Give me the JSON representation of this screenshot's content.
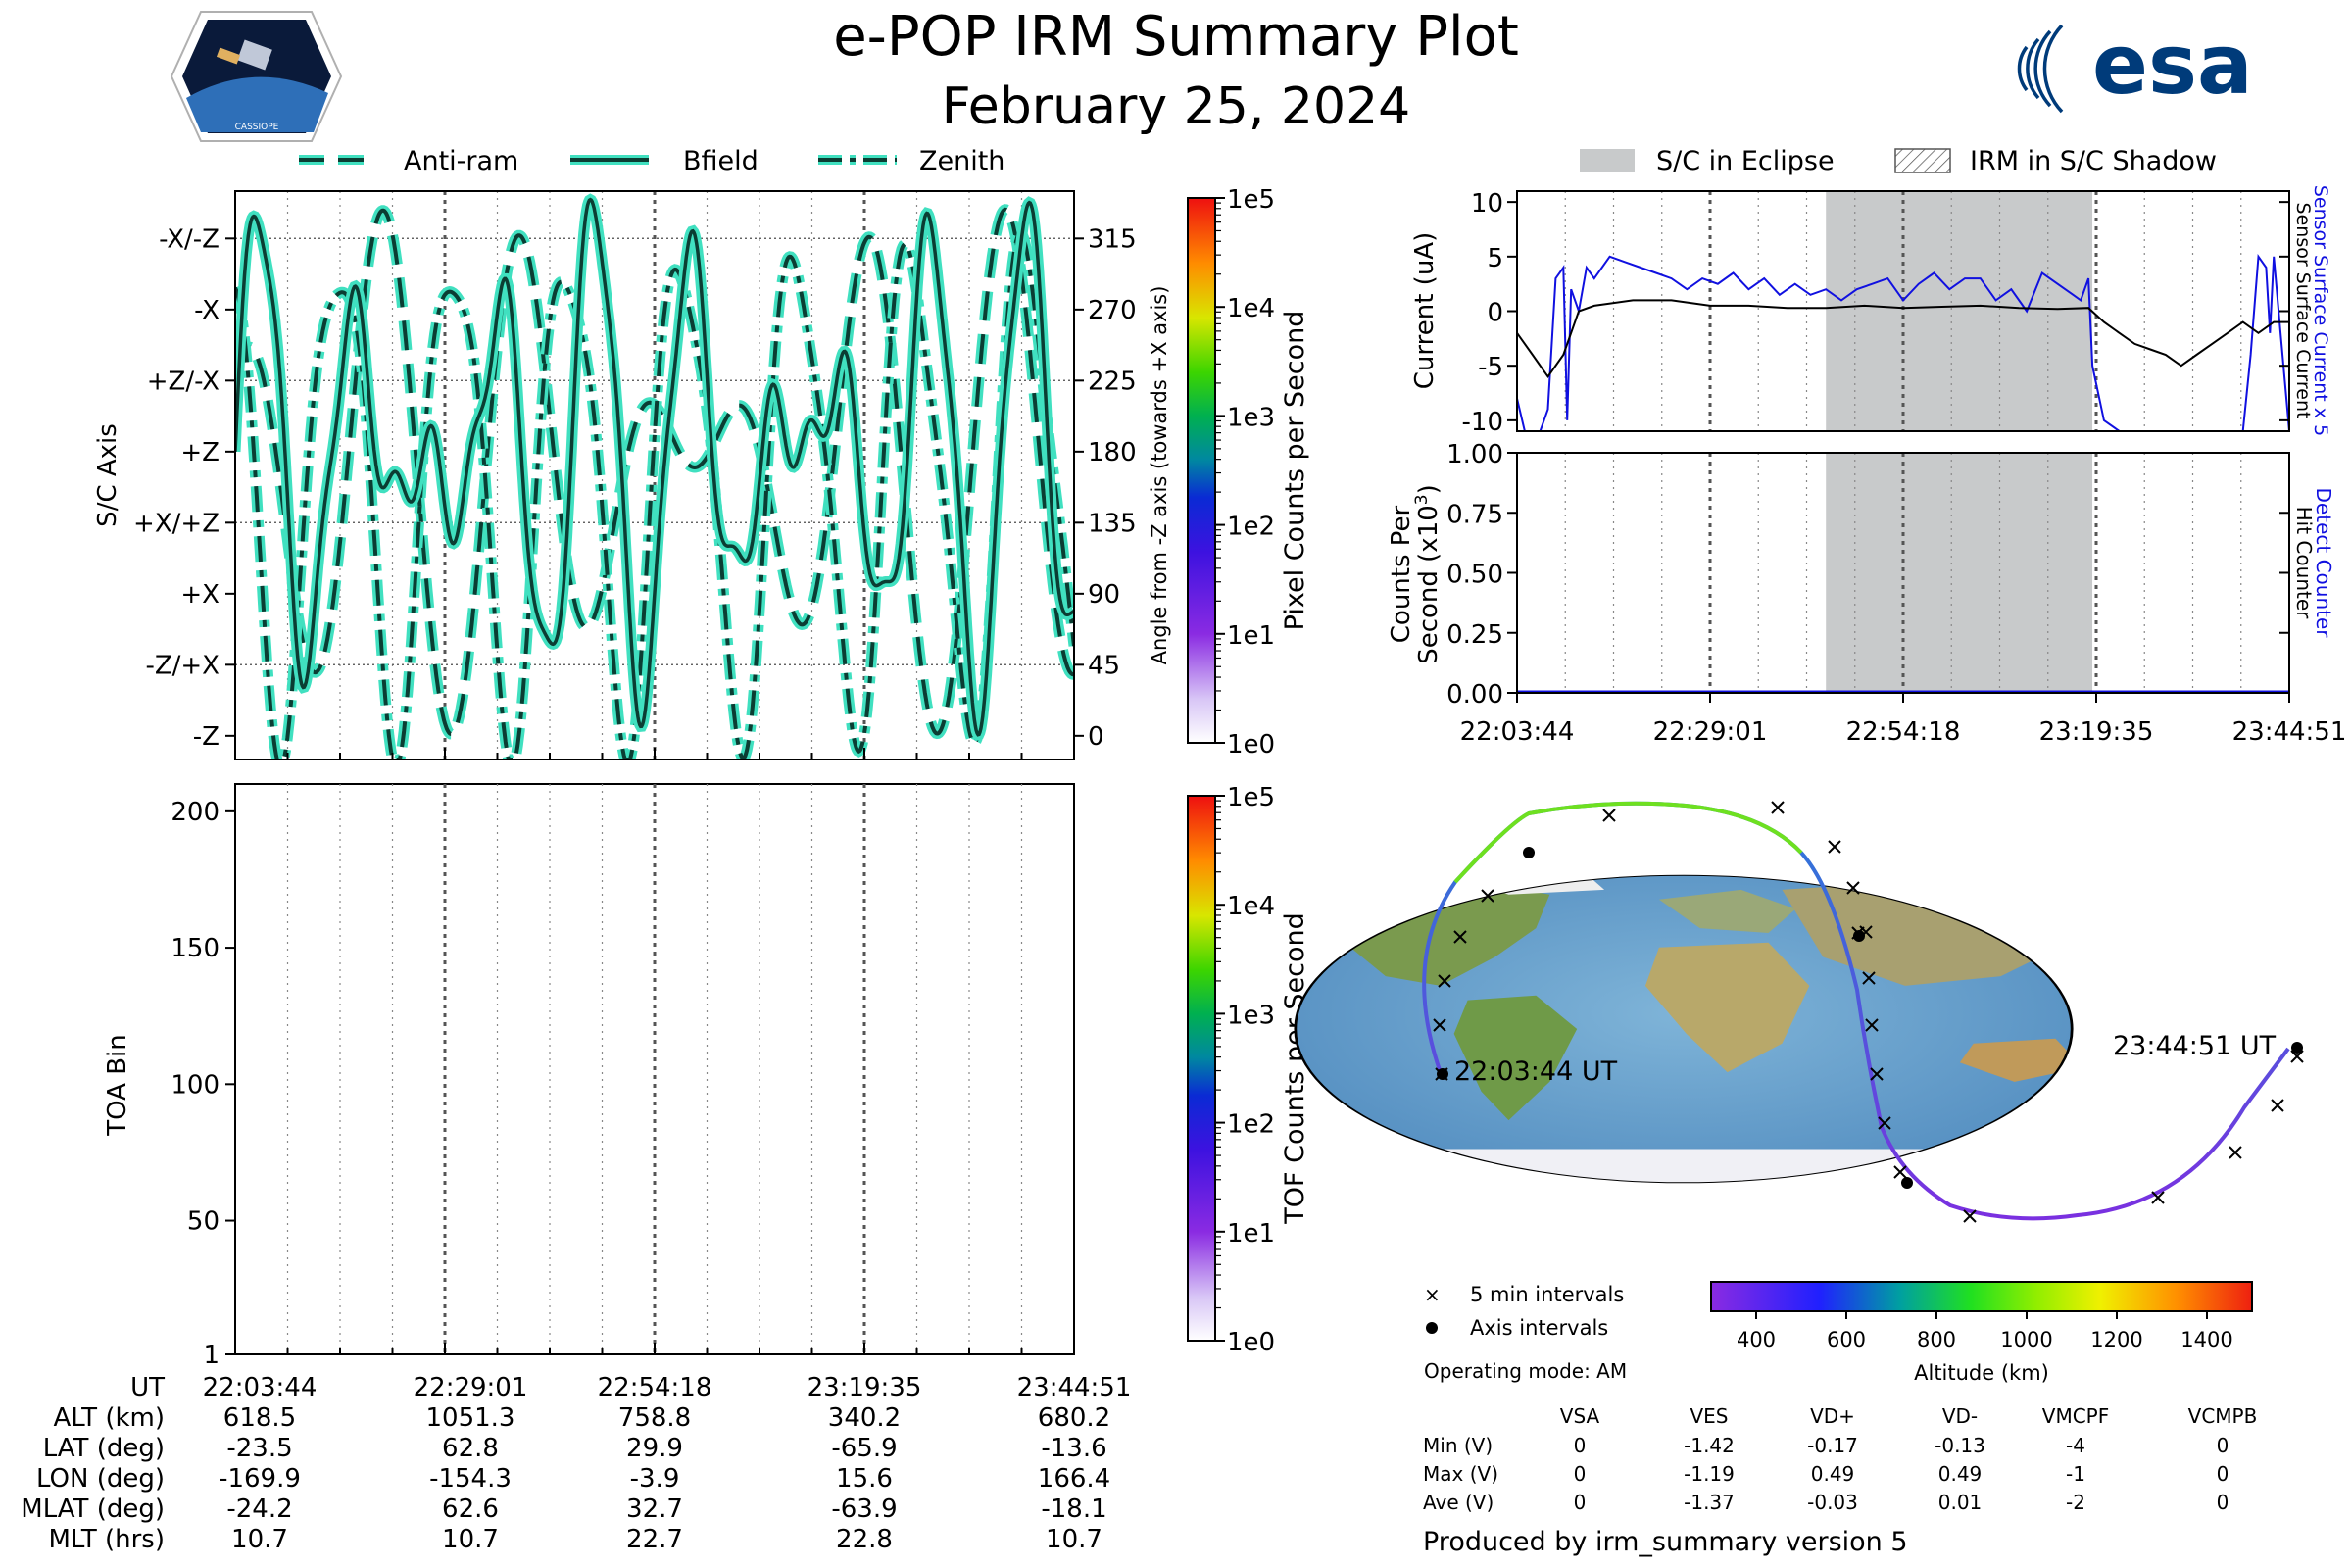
{
  "header": {
    "title": "e-POP IRM Summary Plot",
    "date": "February 25, 2024",
    "mission_logo_text": "CASSIOPE",
    "agency_logo_text": "esa"
  },
  "colors": {
    "trace_fill": "#40e0c0",
    "trace_edge": "#0b3d33",
    "eclipse": "#c8cacb",
    "blue_series": "#1010e0",
    "black_series": "#000000"
  },
  "chart_data": [
    {
      "id": "sc-axis-panel",
      "type": "line",
      "ylabel": "S/C Axis",
      "ylabel_right": "Angle from -Z axis (towards +X axis)",
      "ylim": [
        -15,
        345
      ],
      "y_ticks_left": [
        {
          "value": 0,
          "label": "-Z"
        },
        {
          "value": 45,
          "label": "-Z/+X"
        },
        {
          "value": 90,
          "label": "+X"
        },
        {
          "value": 135,
          "label": "+X/+Z"
        },
        {
          "value": 180,
          "label": "+Z"
        },
        {
          "value": 225,
          "label": "+Z/-X"
        },
        {
          "value": 270,
          "label": "-X"
        },
        {
          "value": 315,
          "label": "-X/-Z"
        }
      ],
      "y_ticks_right": [
        "0",
        "45",
        "90",
        "135",
        "180",
        "225",
        "270",
        "315"
      ],
      "legend": [
        "Anti-ram",
        "Bfield",
        "Zenith"
      ],
      "colorbar": {
        "label": "Pixel Counts per Second",
        "ticks": [
          "1e0",
          "1e1",
          "1e2",
          "1e3",
          "1e4",
          "1e5"
        ]
      }
    },
    {
      "id": "toa-panel",
      "type": "heatmap",
      "ylabel": "TOA Bin",
      "y_ticks": [
        "1",
        "50",
        "100",
        "150",
        "200"
      ],
      "ylim": [
        1,
        210
      ],
      "colorbar": {
        "label": "TOF Counts per Second",
        "ticks": [
          "1e0",
          "1e1",
          "1e2",
          "1e3",
          "1e4",
          "1e5"
        ]
      }
    },
    {
      "id": "current-panel",
      "type": "line",
      "ylabel": "Current (uA)",
      "ylim": [
        -11,
        11
      ],
      "y_ticks": [
        "10",
        "5",
        "0",
        "-5",
        "-10"
      ],
      "legend": [
        "S/C in Eclipse",
        "IRM in S/C Shadow"
      ],
      "right_labels": [
        "Sensor Surface Current x 5",
        "Sensor Surface Current"
      ],
      "eclipse_fraction": [
        0.4,
        0.745
      ],
      "series": [
        {
          "name": "Sensor Surface Current x 5",
          "color": "#1010e0",
          "x": [
            0,
            0.01,
            0.02,
            0.03,
            0.04,
            0.05,
            0.06,
            0.065,
            0.07,
            0.08,
            0.09,
            0.1,
            0.12,
            0.14,
            0.16,
            0.18,
            0.2,
            0.22,
            0.24,
            0.26,
            0.28,
            0.3,
            0.32,
            0.34,
            0.36,
            0.38,
            0.4,
            0.42,
            0.44,
            0.46,
            0.48,
            0.5,
            0.52,
            0.54,
            0.56,
            0.58,
            0.6,
            0.62,
            0.64,
            0.66,
            0.68,
            0.7,
            0.72,
            0.73,
            0.74,
            0.745,
            0.76,
            0.78,
            0.8,
            0.82,
            0.84,
            0.86,
            0.88,
            0.9,
            0.92,
            0.94,
            0.95,
            0.96,
            0.97,
            0.975,
            0.98,
            1
          ],
          "y": [
            -8,
            -11,
            -11,
            -11,
            -9,
            3,
            4,
            -10,
            2,
            0,
            4,
            3,
            5,
            4.5,
            4,
            3.5,
            3,
            2,
            3,
            2.5,
            3.5,
            2,
            3,
            1.5,
            2.5,
            1.5,
            2,
            1,
            2,
            2.5,
            3,
            1,
            2.5,
            3.5,
            2,
            3,
            3,
            1,
            2,
            0,
            3.5,
            2.5,
            1.5,
            1,
            3,
            -5,
            -10,
            -11,
            -11,
            -11,
            -11,
            -11,
            -11,
            -11,
            -11,
            -11,
            -4,
            5,
            4,
            -2,
            5,
            -11
          ]
        },
        {
          "name": "Sensor Surface Current",
          "color": "#000000",
          "x": [
            0,
            0.02,
            0.04,
            0.06,
            0.08,
            0.1,
            0.15,
            0.2,
            0.25,
            0.3,
            0.35,
            0.4,
            0.45,
            0.5,
            0.55,
            0.6,
            0.65,
            0.7,
            0.74,
            0.76,
            0.78,
            0.8,
            0.82,
            0.84,
            0.86,
            0.88,
            0.9,
            0.92,
            0.94,
            0.96,
            0.98,
            1
          ],
          "y": [
            -2,
            -4,
            -6,
            -4,
            0,
            0.5,
            1,
            1,
            0.5,
            0.5,
            0.3,
            0.3,
            0.5,
            0.3,
            0.4,
            0.5,
            0.3,
            0.2,
            0.3,
            -1,
            -2,
            -3,
            -3.5,
            -4,
            -5,
            -4,
            -3,
            -2,
            -1,
            -2,
            -1,
            -1
          ]
        }
      ]
    },
    {
      "id": "counts-panel",
      "type": "line",
      "ylabel": "Counts Per",
      "ylabel2": "Second (x10",
      "ylabel_exp": "3",
      "ylabel_tail": ")",
      "ylim": [
        0,
        1
      ],
      "y_ticks": [
        "1.00",
        "0.75",
        "0.50",
        "0.25",
        "0.00"
      ],
      "right_labels": [
        "Detect Counter",
        "Hit Counter"
      ],
      "eclipse_fraction": [
        0.4,
        0.745
      ],
      "series": [
        {
          "name": "Detect Counter",
          "color": "#1010e0",
          "x": [
            0,
            1
          ],
          "y": [
            0,
            0
          ]
        },
        {
          "name": "Hit Counter",
          "color": "#000000",
          "x": [
            0,
            1
          ],
          "y": [
            0,
            0
          ]
        }
      ]
    }
  ],
  "time_ticks": [
    "22:03:44",
    "22:29:01",
    "22:54:18",
    "23:19:35",
    "23:44:51"
  ],
  "ephemeris": {
    "rows": [
      {
        "label": "UT",
        "values": [
          "22:03:44",
          "22:29:01",
          "22:54:18",
          "23:19:35",
          "23:44:51"
        ]
      },
      {
        "label": "ALT (km)",
        "values": [
          "618.5",
          "1051.3",
          "758.8",
          "340.2",
          "680.2"
        ]
      },
      {
        "label": "LAT (deg)",
        "values": [
          "-23.5",
          "62.8",
          "29.9",
          "-65.9",
          "-13.6"
        ]
      },
      {
        "label": "LON (deg)",
        "values": [
          "-169.9",
          "-154.3",
          "-3.9",
          "15.6",
          "166.4"
        ]
      },
      {
        "label": "MLAT (deg)",
        "values": [
          "-24.2",
          "62.6",
          "32.7",
          "-63.9",
          "-18.1"
        ]
      },
      {
        "label": "MLT (hrs)",
        "values": [
          "10.7",
          "10.7",
          "22.7",
          "22.8",
          "10.7"
        ]
      }
    ]
  },
  "map": {
    "start_label": "22:03:44 UT",
    "end_label": "23:44:51 UT",
    "legend": [
      "5 min intervals",
      "Axis intervals"
    ],
    "altitude_colorbar": {
      "label": "Altitude (km)",
      "ticks": [
        "400",
        "600",
        "800",
        "1000",
        "1200",
        "1400"
      ],
      "range": [
        300,
        1500
      ]
    },
    "operating_mode": "Operating mode: AM"
  },
  "voltage_table": {
    "headers": [
      "VSA",
      "VES",
      "VD+",
      "VD-",
      "VMCPF",
      "VCMPB"
    ],
    "rows": [
      {
        "label": "Min (V)",
        "values": [
          "0",
          "-1.42",
          "-0.17",
          "-0.13",
          "-4",
          "0"
        ]
      },
      {
        "label": "Max (V)",
        "values": [
          "0",
          "-1.19",
          "0.49",
          "0.49",
          "-1",
          "0"
        ]
      },
      {
        "label": "Ave (V)",
        "values": [
          "0",
          "-1.37",
          "-0.03",
          "0.01",
          "-2",
          "0"
        ]
      }
    ]
  },
  "footer": "Produced by irm_summary version 5"
}
